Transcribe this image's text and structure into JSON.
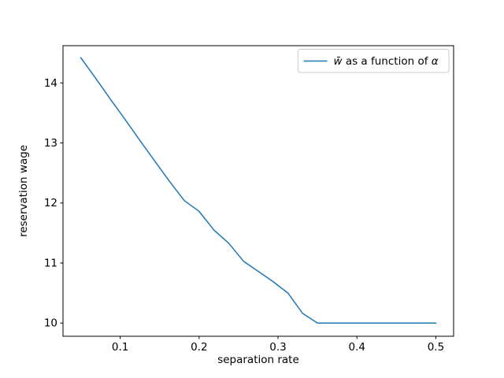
{
  "figure": {
    "background": "#ffffff",
    "frame_color": "#000000"
  },
  "chart_data": {
    "type": "line",
    "title": "",
    "xlabel": "separation rate",
    "ylabel": "reservation wage",
    "x": [
      0.05,
      0.06875,
      0.0875,
      0.10625,
      0.125,
      0.14375,
      0.1625,
      0.18125,
      0.2,
      0.21875,
      0.2375,
      0.25625,
      0.275,
      0.29375,
      0.3125,
      0.33125,
      0.35,
      0.36875,
      0.3875,
      0.40625,
      0.425,
      0.44375,
      0.4625,
      0.48125,
      0.5
    ],
    "series": [
      {
        "name": "w̄ as a function of α",
        "color": "#1f77b4",
        "values": [
          14.42,
          14.08,
          13.73,
          13.39,
          13.04,
          12.7,
          12.36,
          12.04,
          11.86,
          11.55,
          11.33,
          11.03,
          10.86,
          10.69,
          10.5,
          10.16,
          10.0,
          10.0,
          10.0,
          10.0,
          10.0,
          10.0,
          10.0,
          10.0,
          10.0
        ]
      }
    ],
    "xlim": [
      0.0275,
      0.5225
    ],
    "ylim": [
      9.78,
      14.62
    ],
    "xticks": [
      0.1,
      0.2,
      0.3,
      0.4,
      0.5
    ],
    "xtick_labels": [
      "0.1",
      "0.2",
      "0.3",
      "0.4",
      "0.5"
    ],
    "yticks": [
      10,
      11,
      12,
      13,
      14
    ],
    "ytick_labels": [
      "10",
      "11",
      "12",
      "13",
      "14"
    ],
    "grid": false,
    "legend_position": "upper right",
    "legend_items": [
      {
        "color": "#1f77b4",
        "parts": [
          {
            "t": "w̄",
            "italic": true
          },
          {
            "t": " as a function of ",
            "italic": false
          },
          {
            "t": "α",
            "italic": true
          }
        ]
      }
    ]
  }
}
